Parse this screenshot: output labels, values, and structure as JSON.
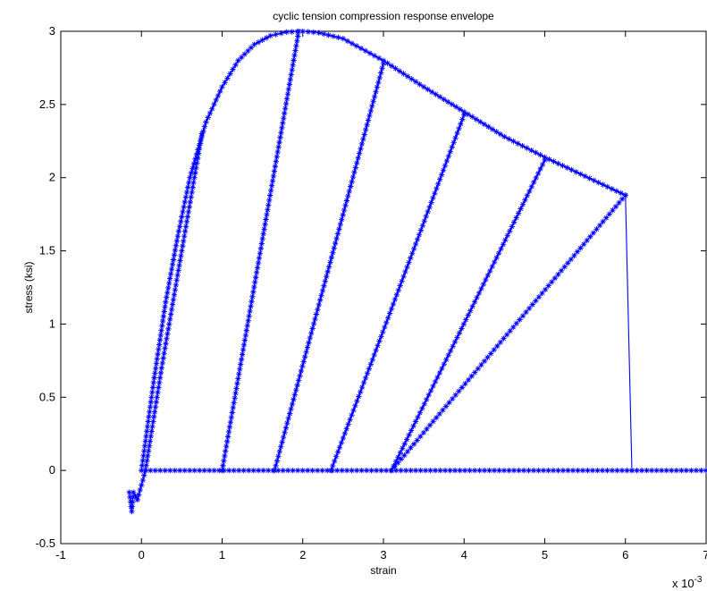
{
  "chart_data": {
    "type": "line",
    "title": "cyclic tension compression response envelope",
    "xlabel": "strain",
    "ylabel": "stress (ksi)",
    "x_multiplier_label": "x 10",
    "x_multiplier_exponent": "-3",
    "xlim": [
      -1,
      7
    ],
    "ylim": [
      -0.5,
      3
    ],
    "x_ticks": [
      -1,
      0,
      1,
      2,
      3,
      4,
      5,
      6,
      7
    ],
    "x_tick_labels": [
      "-1",
      "0",
      "1",
      "2",
      "3",
      "4",
      "5",
      "6",
      "7"
    ],
    "y_ticks": [
      -0.5,
      0,
      0.5,
      1,
      1.5,
      2,
      2.5,
      3
    ],
    "y_tick_labels": [
      "-0.5",
      "0",
      "0.5",
      "1",
      "1.5",
      "2",
      "2.5",
      "3"
    ],
    "grid": false,
    "line_color": "#0000ff",
    "marker": "asterisk",
    "series": [
      {
        "segments": [
          {
            "kind": "envelope",
            "x": [
              0,
              0.15,
              0.3,
              0.45,
              0.6,
              0.8,
              1.0,
              1.2,
              1.4,
              1.6,
              1.8,
              2.0,
              2.2,
              2.5,
              3.0,
              3.5,
              4.0,
              4.5,
              5.0,
              5.5,
              6.0
            ],
            "y": [
              0,
              0.6,
              1.15,
              1.6,
              2.0,
              2.38,
              2.62,
              2.8,
              2.91,
              2.97,
              2.995,
              3.0,
              2.99,
              2.95,
              2.8,
              2.62,
              2.45,
              2.28,
              2.14,
              2.01,
              1.88
            ]
          },
          {
            "kind": "unload",
            "x": [
              0.75,
              0.5,
              0.25,
              0.05
            ],
            "y": [
              2.3,
              1.5,
              0.7,
              0
            ]
          },
          {
            "kind": "unload",
            "x": [
              1.95,
              1.0
            ],
            "y": [
              3.0,
              0
            ]
          },
          {
            "kind": "unload",
            "x": [
              3.0,
              1.65
            ],
            "y": [
              2.78,
              0
            ]
          },
          {
            "kind": "unload",
            "x": [
              4.0,
              2.35
            ],
            "y": [
              2.43,
              0
            ]
          },
          {
            "kind": "unload",
            "x": [
              5.0,
              3.1
            ],
            "y": [
              2.12,
              0
            ]
          },
          {
            "kind": "unload",
            "x": [
              6.0,
              3.1
            ],
            "y": [
              1.88,
              0
            ]
          },
          {
            "kind": "drop",
            "x": [
              6.0,
              6.08
            ],
            "y": [
              1.88,
              0
            ]
          },
          {
            "kind": "zero-line",
            "x": [
              0.05,
              6.08
            ],
            "y": [
              0,
              0
            ]
          },
          {
            "kind": "zero-line",
            "x": [
              6.08,
              7.0
            ],
            "y": [
              0,
              0
            ]
          },
          {
            "kind": "compression",
            "x": [
              -0.15,
              -0.12,
              -0.1,
              -0.05,
              0.0,
              0.05
            ],
            "y": [
              -0.15,
              -0.28,
              -0.15,
              -0.2,
              -0.1,
              0
            ]
          }
        ]
      }
    ]
  }
}
